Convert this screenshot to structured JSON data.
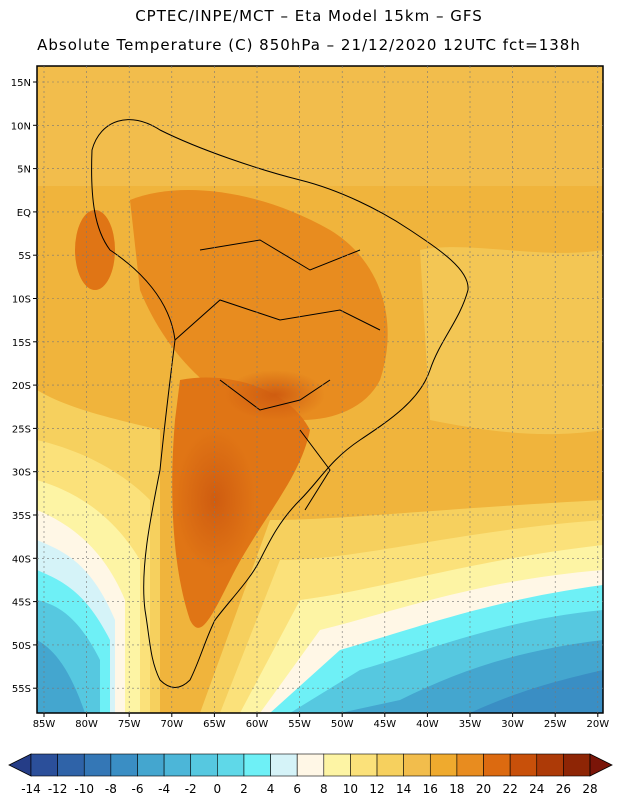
{
  "header": {
    "line1": "CPTEC/INPE/MCT –  Eta Model 15km – GFS",
    "line2": "Absolute Temperature (C) 850hPa – 21/12/2020 12UTC fct=138h"
  },
  "axes": {
    "lat_labels": [
      "15N",
      "10N",
      "5N",
      "EQ",
      "5S",
      "10S",
      "15S",
      "20S",
      "25S",
      "30S",
      "35S",
      "40S",
      "45S",
      "50S",
      "55S"
    ],
    "lon_labels": [
      "85W",
      "80W",
      "75W",
      "70W",
      "65W",
      "60W",
      "55W",
      "50W",
      "45W",
      "40W",
      "35W",
      "30W",
      "25W",
      "20W"
    ]
  },
  "colorbar": {
    "labels": [
      "-14",
      "-12",
      "-10",
      "-8",
      "-6",
      "-4",
      "-2",
      "0",
      "2",
      "4",
      "6",
      "8",
      "10",
      "12",
      "14",
      "16",
      "18",
      "20",
      "22",
      "24",
      "26",
      "28"
    ],
    "colors": [
      "#2b4f9a",
      "#2f63a8",
      "#3477b6",
      "#3a8ec4",
      "#44a6cf",
      "#4cb6d8",
      "#56c8e0",
      "#5fd8e8",
      "#6ef0f6",
      "#d5f3f8",
      "#fff7e6",
      "#fdf4a4",
      "#fbe17a",
      "#f6d05e",
      "#f2bd4c",
      "#efaa2e",
      "#e88c1f",
      "#dc6a10",
      "#c8500a",
      "#ad3a07",
      "#8e2505"
    ],
    "under_color": "#253d87",
    "over_color": "#7a1508"
  }
}
